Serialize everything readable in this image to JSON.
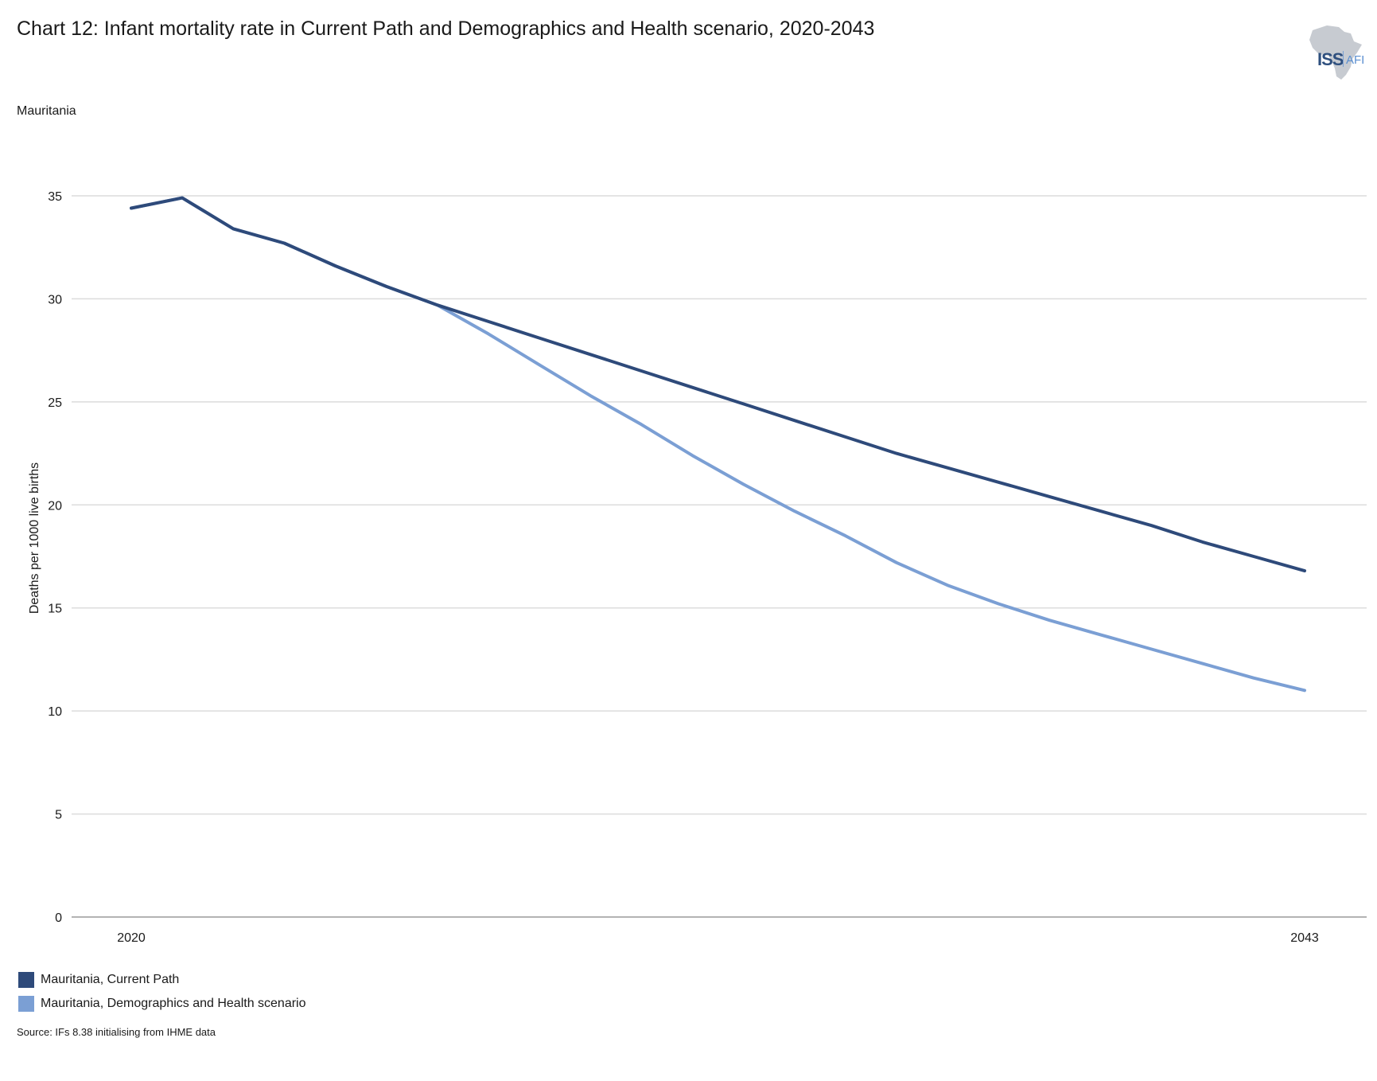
{
  "header": {
    "title": "Chart 12: Infant mortality rate in Current Path and Demographics and Health scenario, 2020-2043",
    "subtitle": "Mauritania"
  },
  "logo": {
    "primary": "ISS",
    "secondary": "AFI",
    "icon": "africa-map-icon"
  },
  "source": "Source: IFs 8.38 initialising from IHME data",
  "colors": {
    "current_path": "#2e4a7a",
    "scenario": "#7b9fd4",
    "grid": "#dcdcdc",
    "axis": "#9a9a9a"
  },
  "chart_data": {
    "type": "line",
    "title": "Chart 12: Infant mortality rate in Current Path and Demographics and Health scenario, 2020-2043",
    "xlabel": "",
    "ylabel": "Deaths per 1000 live births",
    "x": [
      2020,
      2021,
      2022,
      2023,
      2024,
      2025,
      2026,
      2027,
      2028,
      2029,
      2030,
      2031,
      2032,
      2033,
      2034,
      2035,
      2036,
      2037,
      2038,
      2039,
      2040,
      2041,
      2042,
      2043
    ],
    "x_tick_labels": [
      "2020",
      "2043"
    ],
    "x_tick_values": [
      2020,
      2043
    ],
    "ylim": [
      0,
      35
    ],
    "y_ticks": [
      0,
      5,
      10,
      15,
      20,
      25,
      30,
      35
    ],
    "grid": true,
    "legend_position": "bottom-left",
    "series": [
      {
        "name": "Mauritania, Current Path",
        "color": "#2e4a7a",
        "values": [
          34.4,
          34.9,
          33.4,
          32.7,
          31.6,
          30.6,
          29.7,
          28.9,
          28.1,
          27.3,
          26.5,
          25.7,
          24.9,
          24.1,
          23.3,
          22.5,
          21.8,
          21.1,
          20.4,
          19.7,
          19.0,
          18.2,
          17.5,
          16.8
        ]
      },
      {
        "name": "Mauritania, Demographics and Health scenario",
        "color": "#7b9fd4",
        "values": [
          34.4,
          34.9,
          33.4,
          32.7,
          31.6,
          30.6,
          29.7,
          28.3,
          26.8,
          25.3,
          23.9,
          22.4,
          21.0,
          19.7,
          18.5,
          17.2,
          16.1,
          15.2,
          14.4,
          13.7,
          13.0,
          12.3,
          11.6,
          11.0
        ]
      }
    ]
  }
}
